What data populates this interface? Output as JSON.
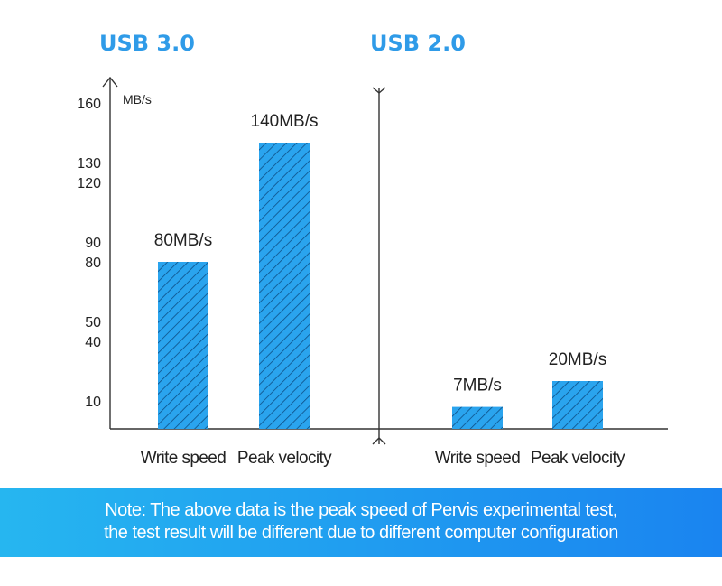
{
  "chart_data": {
    "type": "bar",
    "unit_label": "MB/s",
    "yticks": [
      10,
      40,
      50,
      80,
      90,
      120,
      130,
      160
    ],
    "ylim": [
      0,
      160
    ],
    "colors": {
      "bar": "#2aa4ee",
      "hatch": "#0d4f86",
      "title": "#2f9be8",
      "axis": "#333333"
    },
    "groups": [
      {
        "title": "USB 3.0",
        "categories": [
          "Write speed",
          "Peak velocity"
        ],
        "values": [
          80,
          140
        ],
        "value_labels": [
          "80MB/s",
          "140MB/s"
        ]
      },
      {
        "title": "USB 2.0",
        "categories": [
          "Write speed",
          "Peak velocity"
        ],
        "values": [
          7,
          20
        ],
        "value_labels": [
          "7MB/s",
          "20MB/s"
        ]
      }
    ]
  },
  "note": {
    "line1": "Note: The above data is the peak speed of Pervis experimental test,",
    "line2": "the test result will be different due to different computer configuration"
  }
}
